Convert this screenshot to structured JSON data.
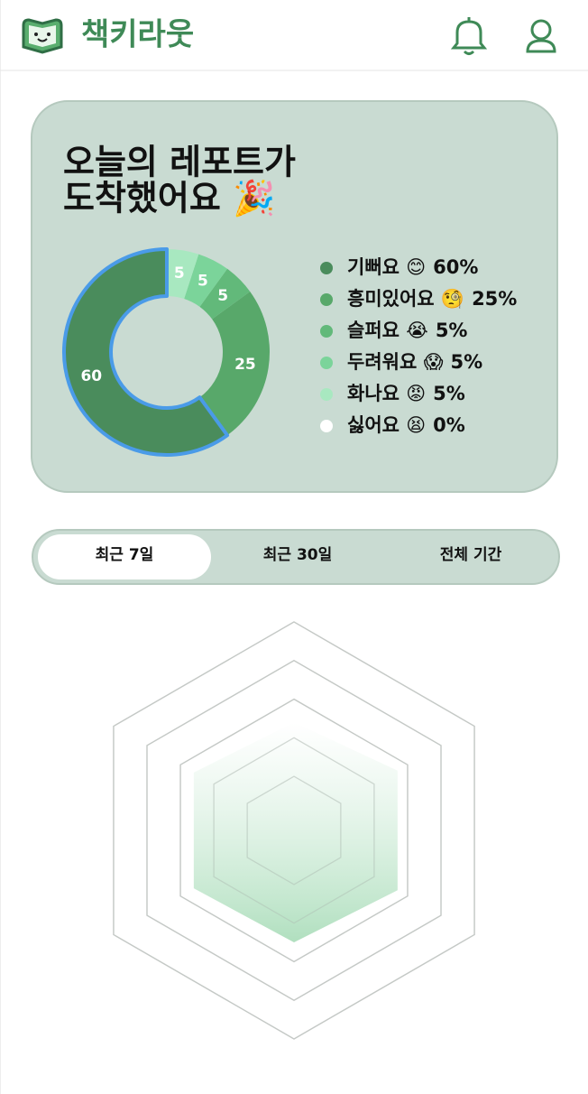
{
  "header": {
    "title": "책키라웃"
  },
  "report": {
    "title": [
      "오늘의 레포트가",
      "도착했어요 🎉"
    ],
    "chart_data": {
      "type": "pie",
      "categories": [
        "기뻐요 😊",
        "흥미있어요 🧐",
        "슬퍼요 😭",
        "두려워요 😱",
        "화나요 😡",
        "싫어요 😫"
      ],
      "values": [
        60,
        25,
        5,
        5,
        5,
        0
      ],
      "value_labels": [
        "60%",
        "25%",
        "5%",
        "5%",
        "5%",
        "0%"
      ],
      "colors": [
        "#4a8c5c",
        "#58a86a",
        "#62b97a",
        "#7bd49a",
        "#a8e8c0",
        "#ffffff"
      ],
      "selected": 0,
      "selected_color": "#4a9be8"
    }
  },
  "tabs": [
    "최근 7일",
    "최근 30일",
    "전체 기간"
  ],
  "radar": {
    "chart_data": {
      "type": "radar",
      "values": [
        2.4,
        2.7,
        2.7,
        2.5,
        2.6,
        2.6
      ],
      "rlim": [
        -0.4,
        5
      ],
      "rticks": [
        1,
        2,
        3,
        4,
        5
      ],
      "color": "#a8dcb8"
    }
  }
}
